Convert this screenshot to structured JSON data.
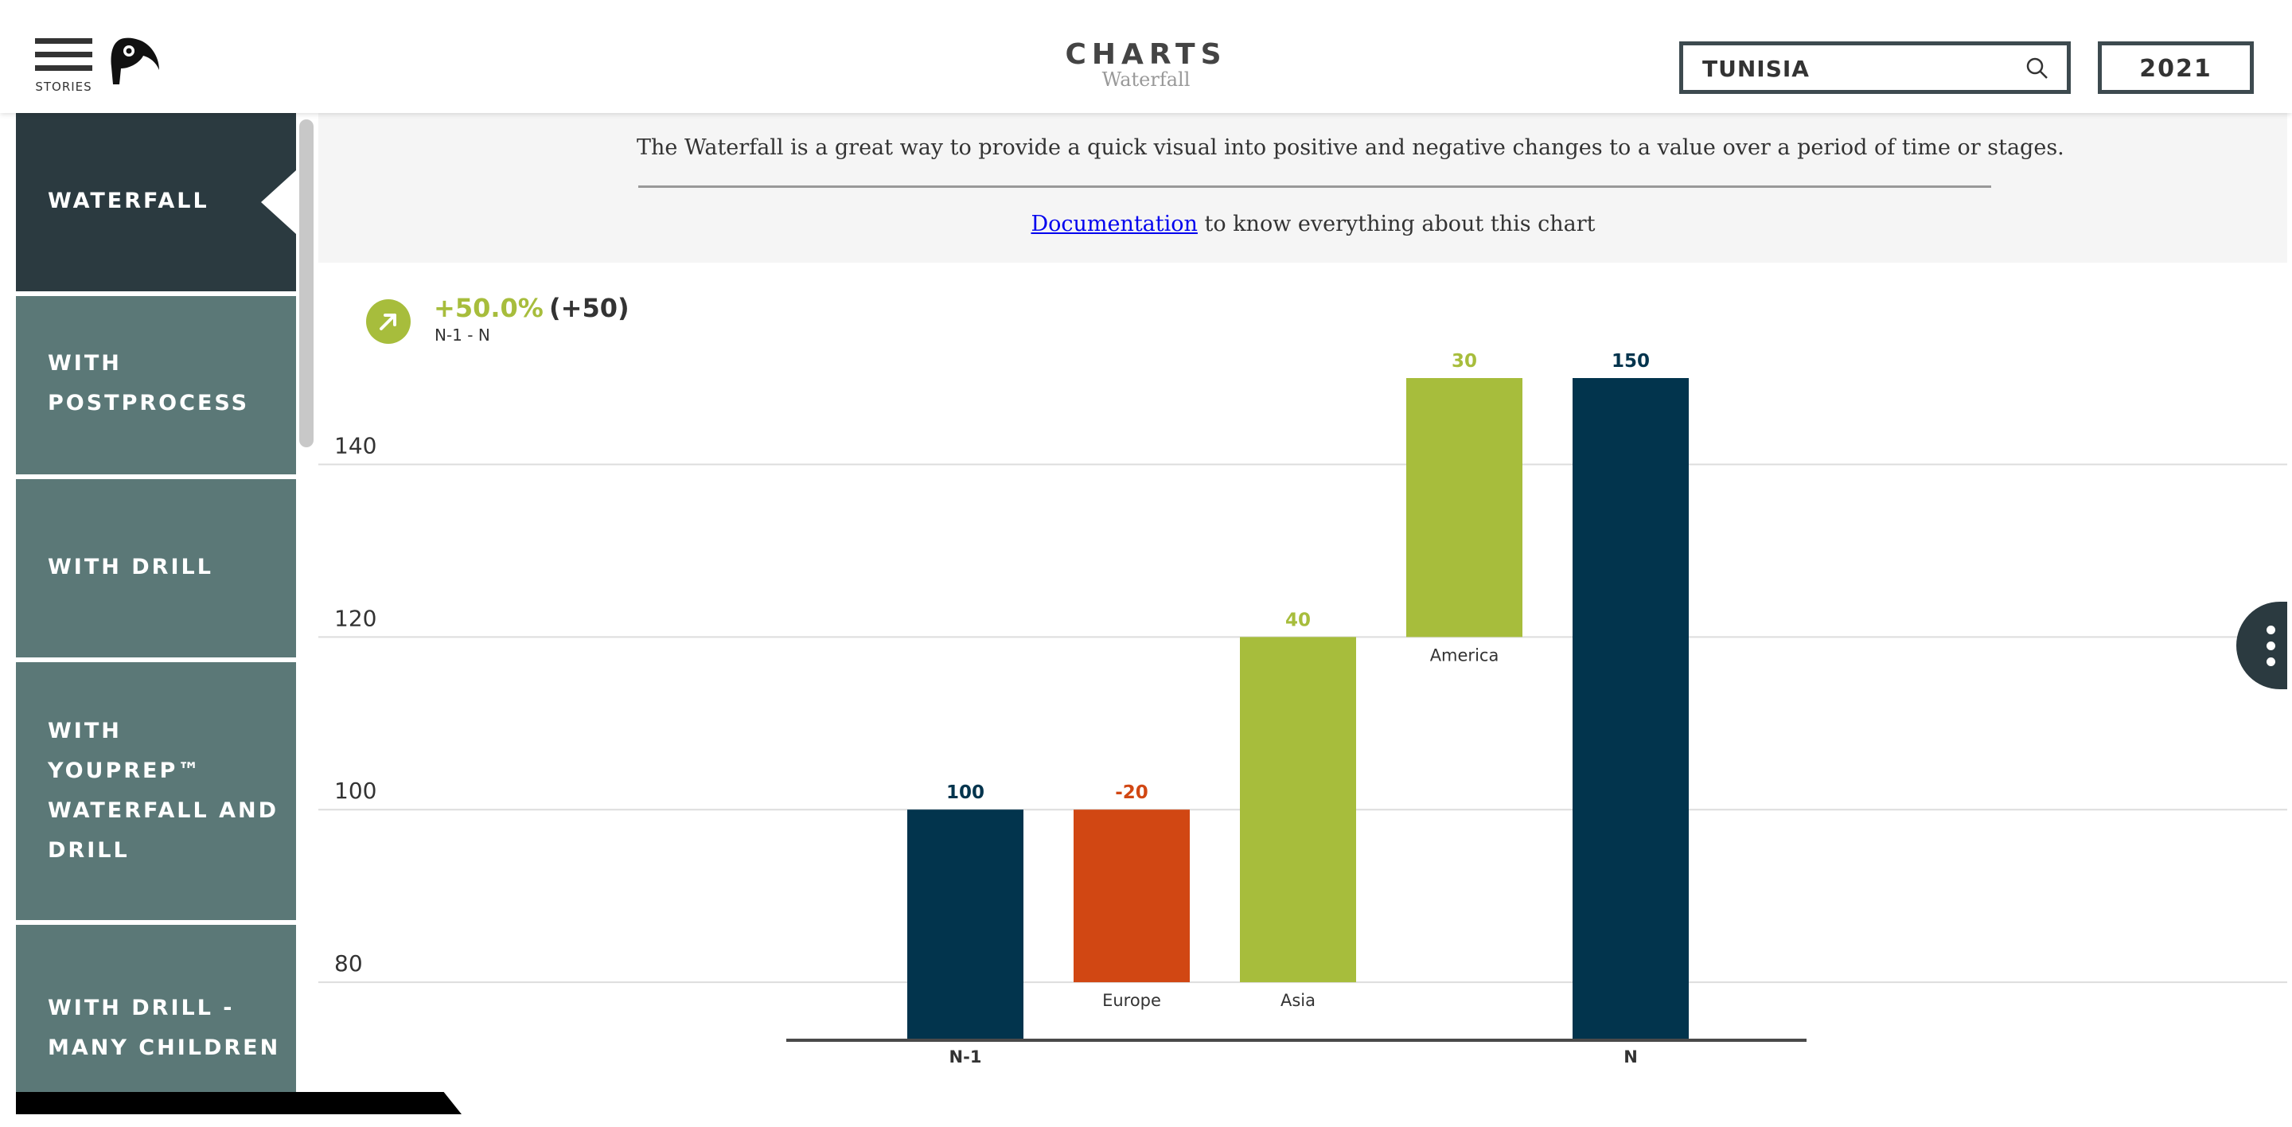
{
  "header": {
    "menu_label": "STORIES",
    "title": "CHARTS",
    "subtitle": "Waterfall",
    "search_value": "TUNISIA",
    "year": "2021"
  },
  "sidebar": {
    "items": [
      {
        "label": "WATERFALL",
        "active": true
      },
      {
        "label": "WITH\nPOSTPROCESS",
        "active": false
      },
      {
        "label": "WITH DRILL",
        "active": false
      },
      {
        "label": "WITH\nYOUPREP™\nWATERFALL AND\nDRILL",
        "active": false
      },
      {
        "label": "WITH DRILL -\nMANY CHILDREN",
        "active": false
      }
    ]
  },
  "description": {
    "text": "The Waterfall is a great way to provide a quick visual into positive and negative changes to a value over a period of time or stages.",
    "link_text": "Documentation",
    "link_suffix": " to know everything about this chart"
  },
  "kpi": {
    "value": "+50.0%",
    "delta": "(+50)",
    "period": "N-1 - N"
  },
  "colors": {
    "total": "#02344d",
    "positive": "#a7bd3c",
    "negative": "#d14713",
    "axis": "#4a4a4a",
    "grid": "#dddddd",
    "text": "#333333"
  },
  "chart_data": {
    "type": "bar",
    "subtype": "waterfall",
    "categories": [
      "N-1",
      "Europe",
      "Asia",
      "America",
      "N"
    ],
    "values": [
      100,
      -20,
      40,
      30,
      150
    ],
    "value_labels": [
      "100",
      "-20",
      "40",
      "30",
      "150"
    ],
    "kinds": [
      "total",
      "delta",
      "delta",
      "delta",
      "total"
    ],
    "y_ticks": [
      80,
      100,
      120,
      140
    ],
    "ylim": [
      73,
      150
    ],
    "grid": true,
    "title": "",
    "xlabel": "",
    "ylabel": ""
  }
}
